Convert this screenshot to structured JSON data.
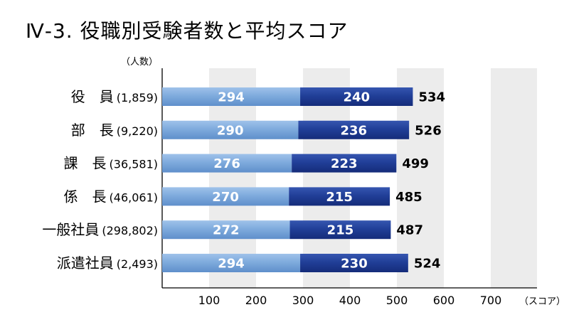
{
  "title": "Ⅳ-3. 役職別受験者数と平均スコア",
  "chart_data": {
    "type": "bar",
    "stacked": true,
    "orientation": "horizontal",
    "title": "Ⅳ-3. 役職別受験者数と平均スコア",
    "count_unit_label": "（人数）",
    "x_unit_label": "（スコア）",
    "categories": [
      {
        "name": "役　員",
        "count": "(1,859)"
      },
      {
        "name": "部　長",
        "count": "(9,220)"
      },
      {
        "name": "課　長",
        "count": "(36,581)"
      },
      {
        "name": "係　長",
        "count": "(46,061)"
      },
      {
        "name": "一般社員",
        "count": "(298,802)"
      },
      {
        "name": "派遣社員",
        "count": "(2,493)"
      }
    ],
    "series": [
      {
        "values": [
          294,
          290,
          276,
          270,
          272,
          294
        ],
        "color": "#74a3d8"
      },
      {
        "values": [
          240,
          236,
          223,
          215,
          215,
          230
        ],
        "color": "#1f3e96"
      }
    ],
    "totals": [
      534,
      526,
      499,
      485,
      487,
      524
    ],
    "xlim": [
      0,
      800
    ],
    "xticks": [
      100,
      200,
      300,
      400,
      500,
      600,
      700
    ],
    "bands": "alternating-gray",
    "grid": false
  }
}
